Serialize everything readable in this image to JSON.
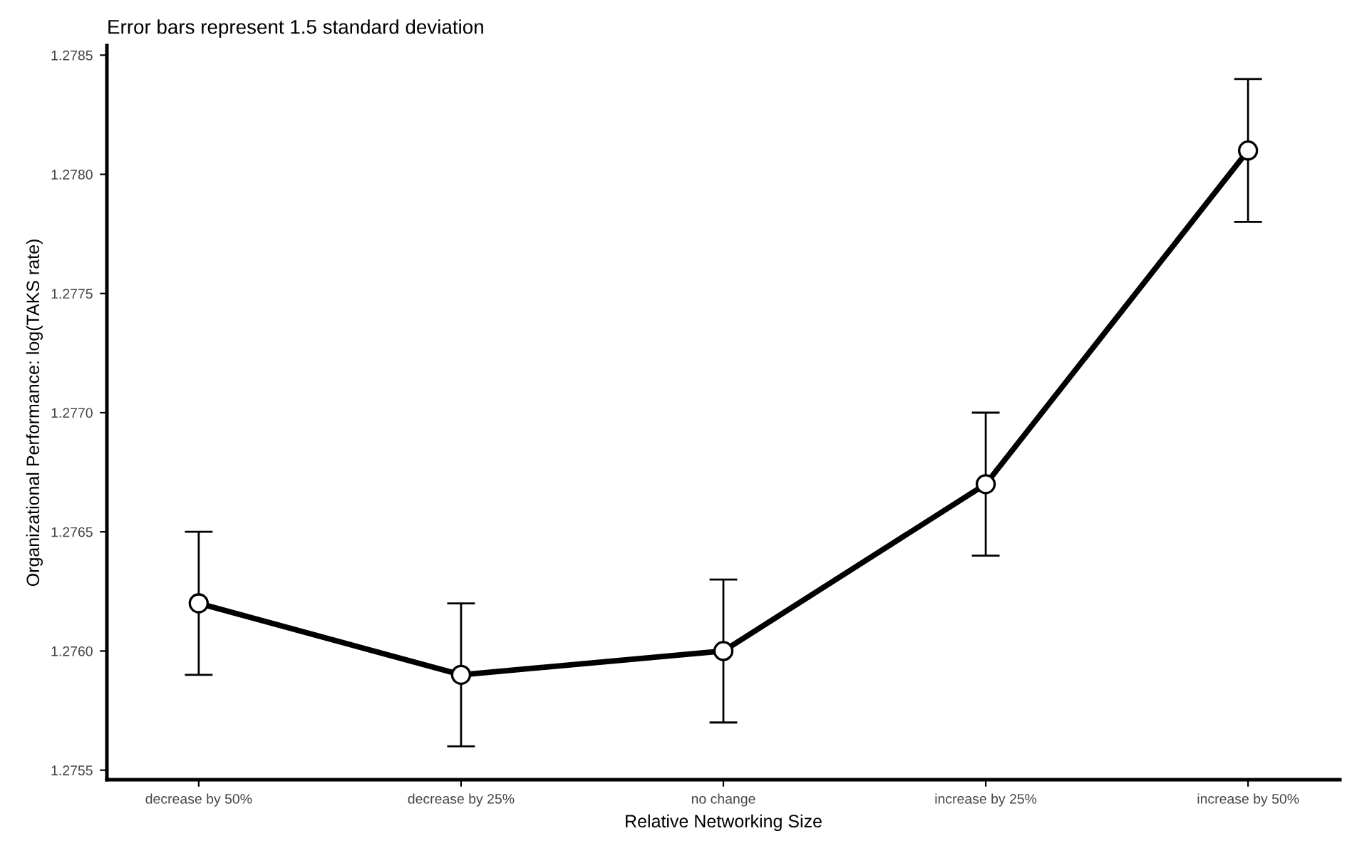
{
  "chart_data": {
    "type": "line",
    "title": "Error bars represent 1.5 standard deviation",
    "xlabel": "Relative Networking Size",
    "ylabel": "Organizational Performance: log(TAKS rate)",
    "categories": [
      "decrease by 50%",
      "decrease by 25%",
      "no change",
      "increase by 25%",
      "increase by 50%"
    ],
    "series": [
      {
        "color": "#000000",
        "values": [
          1.2762,
          1.2759,
          1.276,
          1.2767,
          1.2781
        ],
        "errors": [
          0.0003,
          0.0003,
          0.0003,
          0.0003,
          0.0003
        ]
      }
    ],
    "ylim": [
      1.27546,
      1.27854
    ],
    "yticks": [
      1.2755,
      {
        "value": 1.276,
        "label": "1.2760"
      },
      1.2765,
      {
        "value": 1.277,
        "label": "1.2770"
      },
      1.2775,
      {
        "value": 1.278,
        "label": "1.2780"
      },
      1.2785
    ],
    "marker": "circle",
    "line_style": "solid",
    "grid": false,
    "legend": false
  }
}
